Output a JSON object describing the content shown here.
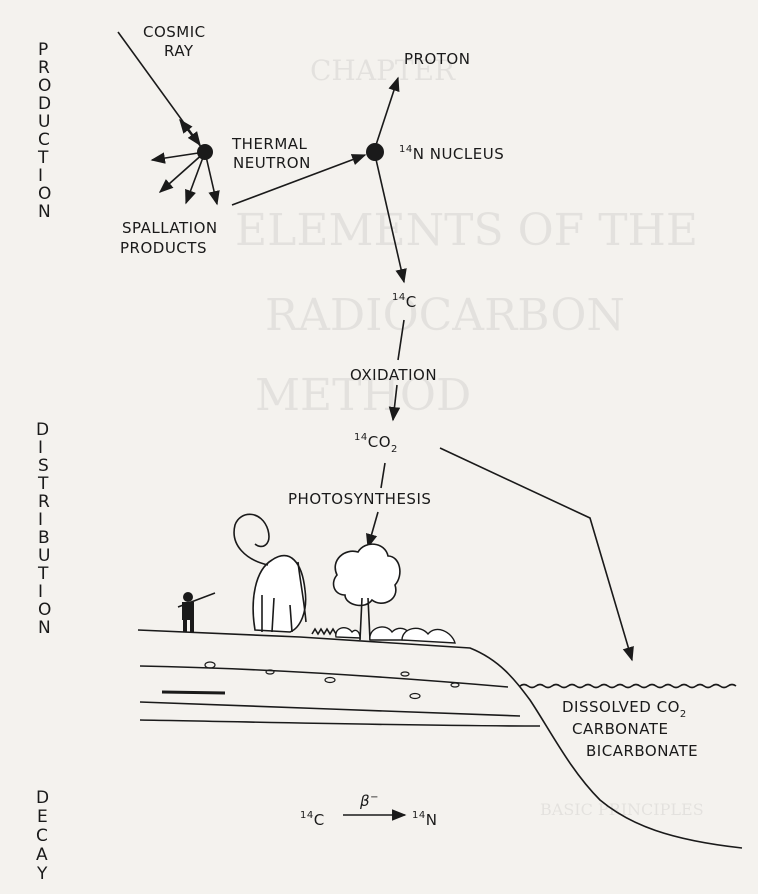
{
  "side_labels": {
    "production": "PRODUCTION",
    "distribution": "DISTRIBUTION",
    "decay": "DECAY"
  },
  "nodes": {
    "cosmic_ray": [
      "COSMIC",
      "RAY"
    ],
    "thermal_neutron": [
      "THERMAL",
      "NEUTRON"
    ],
    "spallation_products": [
      "SPALLATION",
      "PRODUCTS"
    ],
    "proton": "PROTON",
    "nucleus": {
      "sup": "14",
      "text": "N NUCLEUS"
    },
    "carbon14": {
      "sup": "14",
      "text": "C"
    },
    "oxidation": "OXIDATION",
    "co2": {
      "sup": "14",
      "text": "CO",
      "sub": "2"
    },
    "photosynthesis": "PHOTOSYNTHESIS",
    "ocean": {
      "line1": "DISSOLVED CO",
      "line1_sub": "2",
      "line2": "CARBONATE",
      "line3": "BICARBONATE"
    },
    "decay_equation": {
      "left_sup": "14",
      "left": "C",
      "arrow_label": "β",
      "arrow_label_sup": "−",
      "right_sup": "14",
      "right": "N"
    }
  },
  "bleed_through": {
    "heading_lines": [
      "CHAPTER",
      "ELEMENTS OF THE",
      "RADIOCARBON",
      "METHOD"
    ],
    "section": "BASIC PRINCIPLES"
  },
  "colors": {
    "ink": "#1a1a1a",
    "paper": "#f4f2ee"
  }
}
